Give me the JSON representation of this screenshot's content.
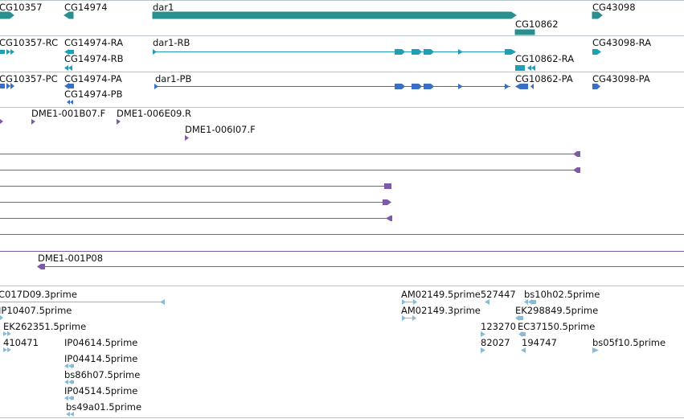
{
  "colors": {
    "gene": "#2a8f8f",
    "transcript_ra": "#1f9fb5",
    "transcript_pa": "#3a6fc6",
    "clone": "#7d5aa8",
    "est": "#86bcd8",
    "divider": "#b7c3c7"
  },
  "gene_track": {
    "labels": [
      "CG10357",
      "CG14974",
      "dar1",
      "CG10862",
      "CG43098"
    ]
  },
  "ra_track": {
    "labels": [
      "CG10357-RC",
      "CG14974-RA",
      "CG14974-RB",
      "dar1-RB",
      "CG10862-RA",
      "CG43098-RA"
    ]
  },
  "pa_track": {
    "labels": [
      "CG10357-PC",
      "CG14974-PA",
      "CG14974-PB",
      "dar1-PB",
      "CG10862-PA",
      "CG43098-PA"
    ]
  },
  "clone_track": {
    "labels": [
      "DME1-001B07.F",
      "DME1-006E09.R",
      "DME1-006I07.F",
      "DME1-001P08"
    ]
  },
  "est_track": {
    "labels": [
      "C017D09.3prime",
      "IP10407.5prime",
      "EK262351.5prime",
      "410471",
      "IP04614.5prime",
      "IP04414.5prime",
      "bs86h07.5prime",
      "IP04514.5prime",
      "bs49a01.5prime",
      "AM02149.5prime527447",
      "bs10h02.5prime",
      "AM02149.3prime",
      "EK298849.5prime",
      "123270",
      "EC37150.5prime",
      "82027",
      "194747",
      "bs05f10.5prime"
    ]
  }
}
